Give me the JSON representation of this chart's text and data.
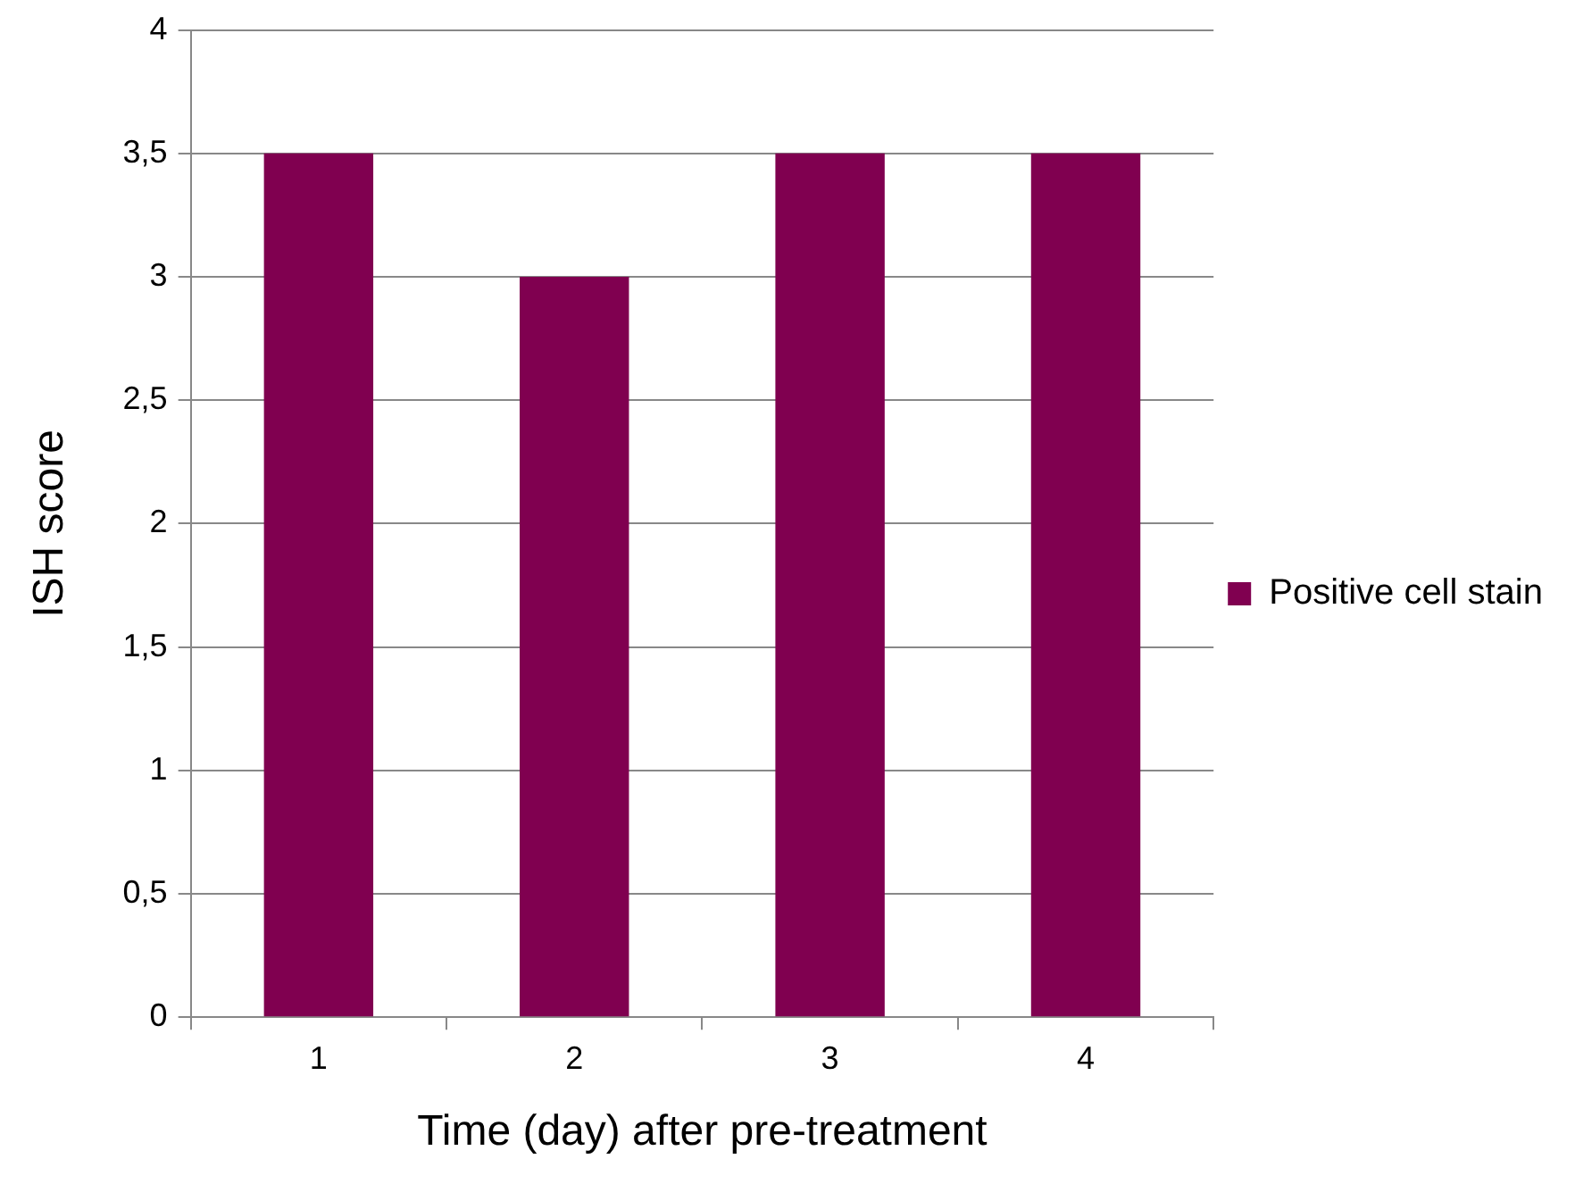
{
  "chart_data": {
    "type": "bar",
    "xlabel": "Time (day) after pre-treatment",
    "ylabel": "ISH score",
    "categories": [
      "1",
      "2",
      "3",
      "4"
    ],
    "series": [
      {
        "name": "Positive cell stain",
        "color": "#800050",
        "values": [
          3.5,
          3,
          3.5,
          3.5
        ]
      }
    ],
    "ylim": [
      0,
      4
    ],
    "yticks": [
      0,
      {
        "value": 0.5,
        "label": "0,5"
      },
      1,
      {
        "value": 1.5,
        "label": "1,5"
      },
      2,
      {
        "value": 2.5,
        "label": "2,5"
      },
      3,
      {
        "value": 3.5,
        "label": "3,5"
      },
      4
    ],
    "grid": "y",
    "legend": "right"
  }
}
